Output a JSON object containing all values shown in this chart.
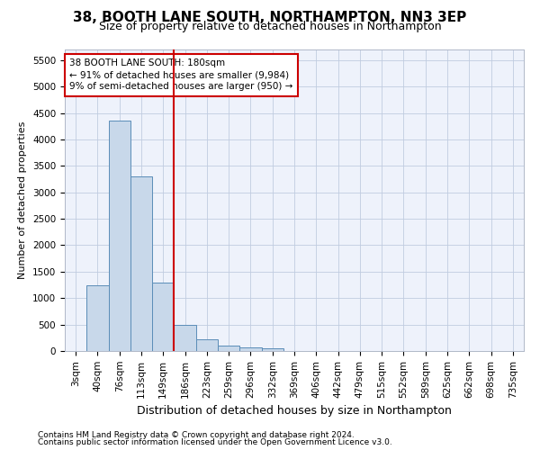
{
  "title": "38, BOOTH LANE SOUTH, NORTHAMPTON, NN3 3EP",
  "subtitle": "Size of property relative to detached houses in Northampton",
  "xlabel": "Distribution of detached houses by size in Northampton",
  "ylabel": "Number of detached properties",
  "footnote1": "Contains HM Land Registry data © Crown copyright and database right 2024.",
  "footnote2": "Contains public sector information licensed under the Open Government Licence v3.0.",
  "categories": [
    "3sqm",
    "40sqm",
    "76sqm",
    "113sqm",
    "149sqm",
    "186sqm",
    "223sqm",
    "259sqm",
    "296sqm",
    "332sqm",
    "369sqm",
    "406sqm",
    "442sqm",
    "479sqm",
    "515sqm",
    "552sqm",
    "589sqm",
    "625sqm",
    "662sqm",
    "698sqm",
    "735sqm"
  ],
  "values": [
    0,
    1250,
    4350,
    3300,
    1300,
    500,
    220,
    110,
    75,
    55,
    0,
    0,
    0,
    0,
    0,
    0,
    0,
    0,
    0,
    0,
    0
  ],
  "bar_color": "#c8d8ea",
  "bar_edge_color": "#5b8db8",
  "vline_position": 4.5,
  "vline_color": "#cc0000",
  "annotation_text_line1": "38 BOOTH LANE SOUTH: 180sqm",
  "annotation_text_line2": "← 91% of detached houses are smaller (9,984)",
  "annotation_text_line3": "9% of semi-detached houses are larger (950) →",
  "annotation_box_color": "#cc0000",
  "annotation_box_fill": "#ffffff",
  "ylim_max": 5700,
  "yticks": [
    0,
    500,
    1000,
    1500,
    2000,
    2500,
    3000,
    3500,
    4000,
    4500,
    5000,
    5500
  ],
  "grid_color": "#c0cce0",
  "background_color": "#eef2fb",
  "title_fontsize": 11,
  "subtitle_fontsize": 9,
  "xlabel_fontsize": 9,
  "ylabel_fontsize": 8,
  "tick_fontsize": 7.5,
  "footnote_fontsize": 6.5,
  "font_family": "DejaVu Sans"
}
